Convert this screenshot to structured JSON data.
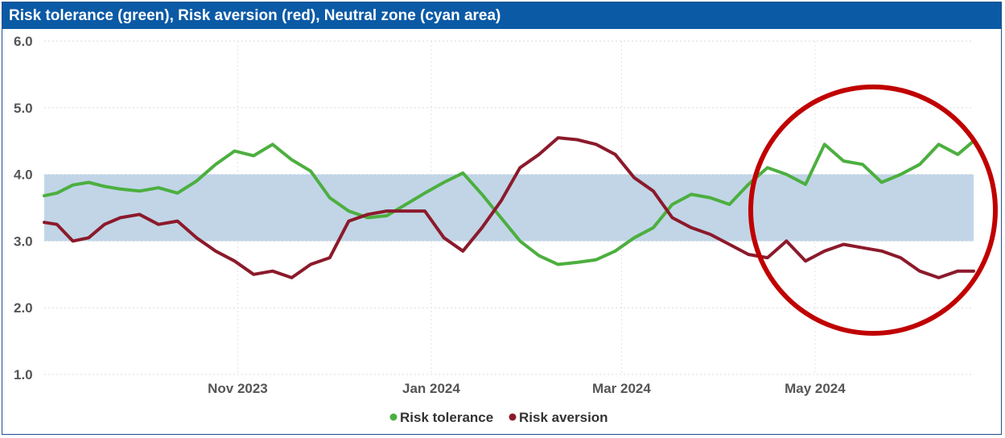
{
  "chart_data": {
    "type": "line",
    "title": "Risk tolerance (green), Risk aversion (red), Neutral zone (cyan area)",
    "ylim": [
      1.0,
      6.0
    ],
    "y_ticks": [
      "6.0",
      "5.0",
      "4.0",
      "3.0",
      "2.0",
      "1.0"
    ],
    "x_ticks": [
      "Nov 2023",
      "Jan 2024",
      "Mar 2024",
      "May 2024"
    ],
    "x_range": [
      "2023-09-01",
      "2024-06-20"
    ],
    "neutral_zone": [
      3.0,
      4.0
    ],
    "grid": true,
    "legend_position": "bottom",
    "annotation": "red circle highlighting the most recent period (May–June 2024)",
    "colors": {
      "risk_tolerance": "#4caf3f",
      "risk_aversion": "#8b1a2b",
      "neutral_zone": "#c1d5e7",
      "circle": "#c00000",
      "title_bar": "#0b5aa6"
    },
    "series": [
      {
        "name": "Risk tolerance",
        "x": [
          "2023-09-01",
          "2023-09-05",
          "2023-09-10",
          "2023-09-15",
          "2023-09-20",
          "2023-09-25",
          "2023-10-01",
          "2023-10-07",
          "2023-10-13",
          "2023-10-19",
          "2023-10-25",
          "2023-10-31",
          "2023-11-06",
          "2023-11-12",
          "2023-11-18",
          "2023-11-24",
          "2023-11-30",
          "2023-12-06",
          "2023-12-12",
          "2023-12-18",
          "2023-12-24",
          "2023-12-30",
          "2024-01-05",
          "2024-01-11",
          "2024-01-17",
          "2024-01-23",
          "2024-01-29",
          "2024-02-04",
          "2024-02-10",
          "2024-02-16",
          "2024-02-22",
          "2024-02-28",
          "2024-03-05",
          "2024-03-11",
          "2024-03-17",
          "2024-03-23",
          "2024-03-29",
          "2024-04-04",
          "2024-04-10",
          "2024-04-16",
          "2024-04-22",
          "2024-04-28",
          "2024-05-04",
          "2024-05-10",
          "2024-05-16",
          "2024-05-22",
          "2024-05-28",
          "2024-06-03",
          "2024-06-09",
          "2024-06-15",
          "2024-06-20"
        ],
        "values": [
          3.68,
          3.72,
          3.84,
          3.88,
          3.82,
          3.78,
          3.75,
          3.8,
          3.72,
          3.9,
          4.15,
          4.35,
          4.28,
          4.45,
          4.22,
          4.05,
          3.65,
          3.45,
          3.35,
          3.38,
          3.55,
          3.72,
          3.88,
          4.02,
          3.7,
          3.35,
          3.0,
          2.78,
          2.65,
          2.68,
          2.72,
          2.85,
          3.05,
          3.2,
          3.55,
          3.7,
          3.65,
          3.55,
          3.85,
          4.1,
          4.0,
          3.85,
          4.45,
          4.2,
          4.15,
          3.88,
          4.0,
          4.15,
          4.45,
          4.3,
          4.5
        ]
      },
      {
        "name": "Risk aversion",
        "x": [
          "2023-09-01",
          "2023-09-05",
          "2023-09-10",
          "2023-09-15",
          "2023-09-20",
          "2023-09-25",
          "2023-10-01",
          "2023-10-07",
          "2023-10-13",
          "2023-10-19",
          "2023-10-25",
          "2023-10-31",
          "2023-11-06",
          "2023-11-12",
          "2023-11-18",
          "2023-11-24",
          "2023-11-30",
          "2023-12-06",
          "2023-12-12",
          "2023-12-18",
          "2023-12-24",
          "2023-12-30",
          "2024-01-05",
          "2024-01-11",
          "2024-01-17",
          "2024-01-23",
          "2024-01-29",
          "2024-02-04",
          "2024-02-10",
          "2024-02-16",
          "2024-02-22",
          "2024-02-28",
          "2024-03-05",
          "2024-03-11",
          "2024-03-17",
          "2024-03-23",
          "2024-03-29",
          "2024-04-04",
          "2024-04-10",
          "2024-04-16",
          "2024-04-22",
          "2024-04-28",
          "2024-05-04",
          "2024-05-10",
          "2024-05-16",
          "2024-05-22",
          "2024-05-28",
          "2024-06-03",
          "2024-06-09",
          "2024-06-15",
          "2024-06-20"
        ],
        "values": [
          3.28,
          3.25,
          3.0,
          3.05,
          3.25,
          3.35,
          3.4,
          3.25,
          3.3,
          3.05,
          2.85,
          2.7,
          2.5,
          2.55,
          2.45,
          2.65,
          2.75,
          3.3,
          3.4,
          3.45,
          3.45,
          3.45,
          3.05,
          2.85,
          3.2,
          3.6,
          4.1,
          4.3,
          4.55,
          4.52,
          4.45,
          4.3,
          3.95,
          3.75,
          3.35,
          3.2,
          3.1,
          2.95,
          2.8,
          2.75,
          3.0,
          2.7,
          2.85,
          2.95,
          2.9,
          2.85,
          2.75,
          2.55,
          2.45,
          2.55,
          2.55
        ]
      }
    ]
  }
}
